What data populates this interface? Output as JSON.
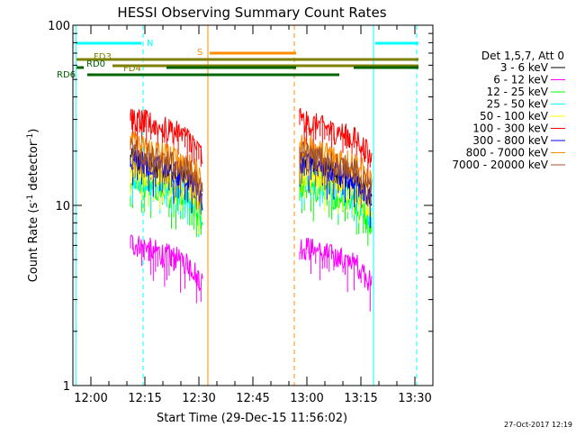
{
  "chart_data": {
    "type": "line",
    "title": "HESSI Observing Summary Count Rates",
    "xlabel": "Start Time (29-Dec-15 11:56:02)",
    "ylabel": "Count Rate (s⁻¹ detector⁻¹)",
    "ylabel_main": "Count Rate (s",
    "ylabel_sup1": "-1",
    "ylabel_mid": " detector",
    "ylabel_sup2": "-1",
    "ylabel_end": ")",
    "yscale": "log",
    "ylim": [
      1,
      100
    ],
    "xlim_minutes": [
      -5,
      95
    ],
    "x_ticks": [
      {
        "t": 0,
        "label": "12:00"
      },
      {
        "t": 15,
        "label": "12:15"
      },
      {
        "t": 30,
        "label": "12:30"
      },
      {
        "t": 45,
        "label": "12:45"
      },
      {
        "t": 60,
        "label": "13:00"
      },
      {
        "t": 75,
        "label": "13:15"
      },
      {
        "t": 90,
        "label": "13:30"
      }
    ],
    "y_ticks": [
      {
        "v": 1,
        "label": "1"
      },
      {
        "v": 10,
        "label": "10"
      },
      {
        "v": 100,
        "label": "100"
      }
    ],
    "legend_title": "Det 1,5,7, Att 0",
    "legend_position": "right",
    "series": [
      {
        "name": "3 - 6 keV",
        "color": "#000000",
        "intervals": [
          [
            11,
            31,
            18.0
          ],
          [
            58,
            78,
            17.5
          ]
        ]
      },
      {
        "name": "6 - 12 keV",
        "color": "#ff00ff",
        "intervals": [
          [
            11,
            31,
            6.2
          ],
          [
            58,
            78,
            6.0
          ]
        ]
      },
      {
        "name": "12 - 25 keV",
        "color": "#00ff00",
        "intervals": [
          [
            11,
            31,
            13.5
          ],
          [
            58,
            78,
            13.0
          ]
        ]
      },
      {
        "name": "25 - 50 keV",
        "color": "#00ffff",
        "intervals": [
          [
            11,
            31,
            14.8
          ],
          [
            58,
            78,
            14.5
          ]
        ]
      },
      {
        "name": "50 - 100 keV",
        "color": "#ffff00",
        "intervals": [
          [
            11,
            31,
            16.0
          ],
          [
            58,
            78,
            15.5
          ]
        ]
      },
      {
        "name": "100 - 300 keV",
        "color": "#ff0000",
        "intervals": [
          [
            11,
            31,
            31.0
          ],
          [
            58,
            78,
            30.0
          ]
        ]
      },
      {
        "name": "300 - 800 keV",
        "color": "#0000ff",
        "intervals": [
          [
            11,
            31,
            18.5
          ],
          [
            58,
            78,
            18.0
          ]
        ]
      },
      {
        "name": "800 - 7000 keV",
        "color": "#ff8c00",
        "intervals": [
          [
            11,
            31,
            22.5
          ],
          [
            58,
            78,
            22.0
          ]
        ]
      },
      {
        "name": "7000 - 20000 keV",
        "color": "#a0522d",
        "intervals": [
          [
            11,
            31,
            20.5
          ],
          [
            58,
            78,
            20.0
          ]
        ]
      }
    ],
    "flag_bars": [
      {
        "label": "N",
        "color": "#00ffff",
        "segments": [
          [
            -4,
            14
          ],
          [
            79,
            91
          ]
        ]
      },
      {
        "label": "S",
        "color": "#ff8c00",
        "segments": [
          [
            33,
            57
          ]
        ]
      },
      {
        "label": "FD3",
        "color": "#808000",
        "segments": [
          [
            -4,
            91
          ]
        ]
      },
      {
        "label": "FD4",
        "color": "#808000",
        "segments": [
          [
            6,
            91
          ]
        ]
      },
      {
        "label": "RD0",
        "color": "#006400",
        "segments": [
          [
            -4,
            -2
          ],
          [
            21,
            57
          ],
          [
            73,
            91
          ]
        ]
      },
      {
        "label": "RD6",
        "color": "#006400",
        "segments": [
          [
            -1,
            69
          ]
        ]
      }
    ],
    "vertical_markers": [
      {
        "t": -4.2,
        "color": "#00ffff",
        "style": "solid"
      },
      {
        "t": 14.5,
        "color": "#00ffff",
        "style": "dashed"
      },
      {
        "t": 32.5,
        "color": "#ff8c00",
        "style": "solid"
      },
      {
        "t": 56.5,
        "color": "#ff8c00",
        "style": "dashed"
      },
      {
        "t": 78.5,
        "color": "#00ffff",
        "style": "solid"
      },
      {
        "t": 90.5,
        "color": "#00ffff",
        "style": "dashed"
      }
    ]
  },
  "footer": {
    "timestamp": "27-Oct-2017 12:19"
  }
}
